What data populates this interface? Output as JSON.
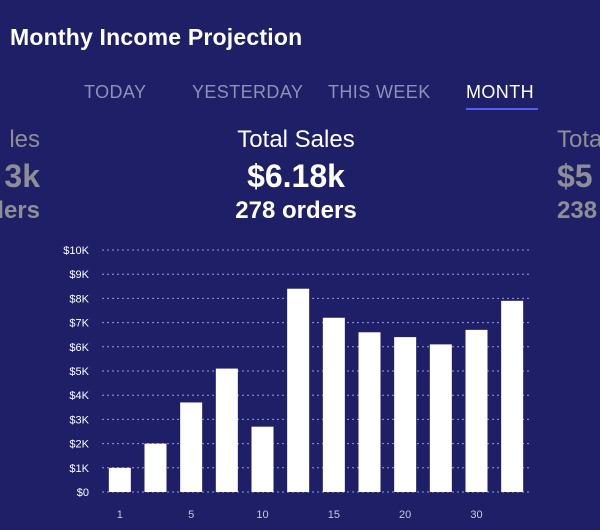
{
  "header": {
    "title": "Monthy Income Projection"
  },
  "tabs": [
    {
      "label": "TODAY",
      "active": false
    },
    {
      "label": "YESTERDAY",
      "active": false
    },
    {
      "label": "THIS WEEK",
      "active": false
    },
    {
      "label": "MONTH",
      "active": true
    }
  ],
  "summary_panels": {
    "left": {
      "label": "les",
      "amount": "3k",
      "orders": "ders"
    },
    "center": {
      "label": "Total Sales",
      "amount": "$6.18k",
      "orders": "278 orders"
    },
    "right": {
      "label": "Tota",
      "amount": "$5",
      "orders": "238"
    }
  },
  "colors": {
    "background": "#1f1f67",
    "accent": "#5a5cf0",
    "bar": "#ffffff",
    "muted": "#8e8e96"
  },
  "chart_data": {
    "type": "bar",
    "x": [
      1,
      3,
      5,
      7,
      9,
      11,
      13,
      15,
      17,
      19,
      21,
      23
    ],
    "values": [
      1000,
      2000,
      3700,
      5100,
      2700,
      8400,
      7200,
      6600,
      6400,
      6100,
      6700,
      7900
    ],
    "xticks": [
      1,
      5,
      10,
      15,
      20,
      30
    ],
    "yticks": [
      "$0",
      "$1K",
      "$2K",
      "$3K",
      "$4K",
      "$5K",
      "$6K",
      "$7K",
      "$8K",
      "$9K",
      "$10K"
    ],
    "ylim": [
      0,
      10000
    ],
    "grid": true
  }
}
